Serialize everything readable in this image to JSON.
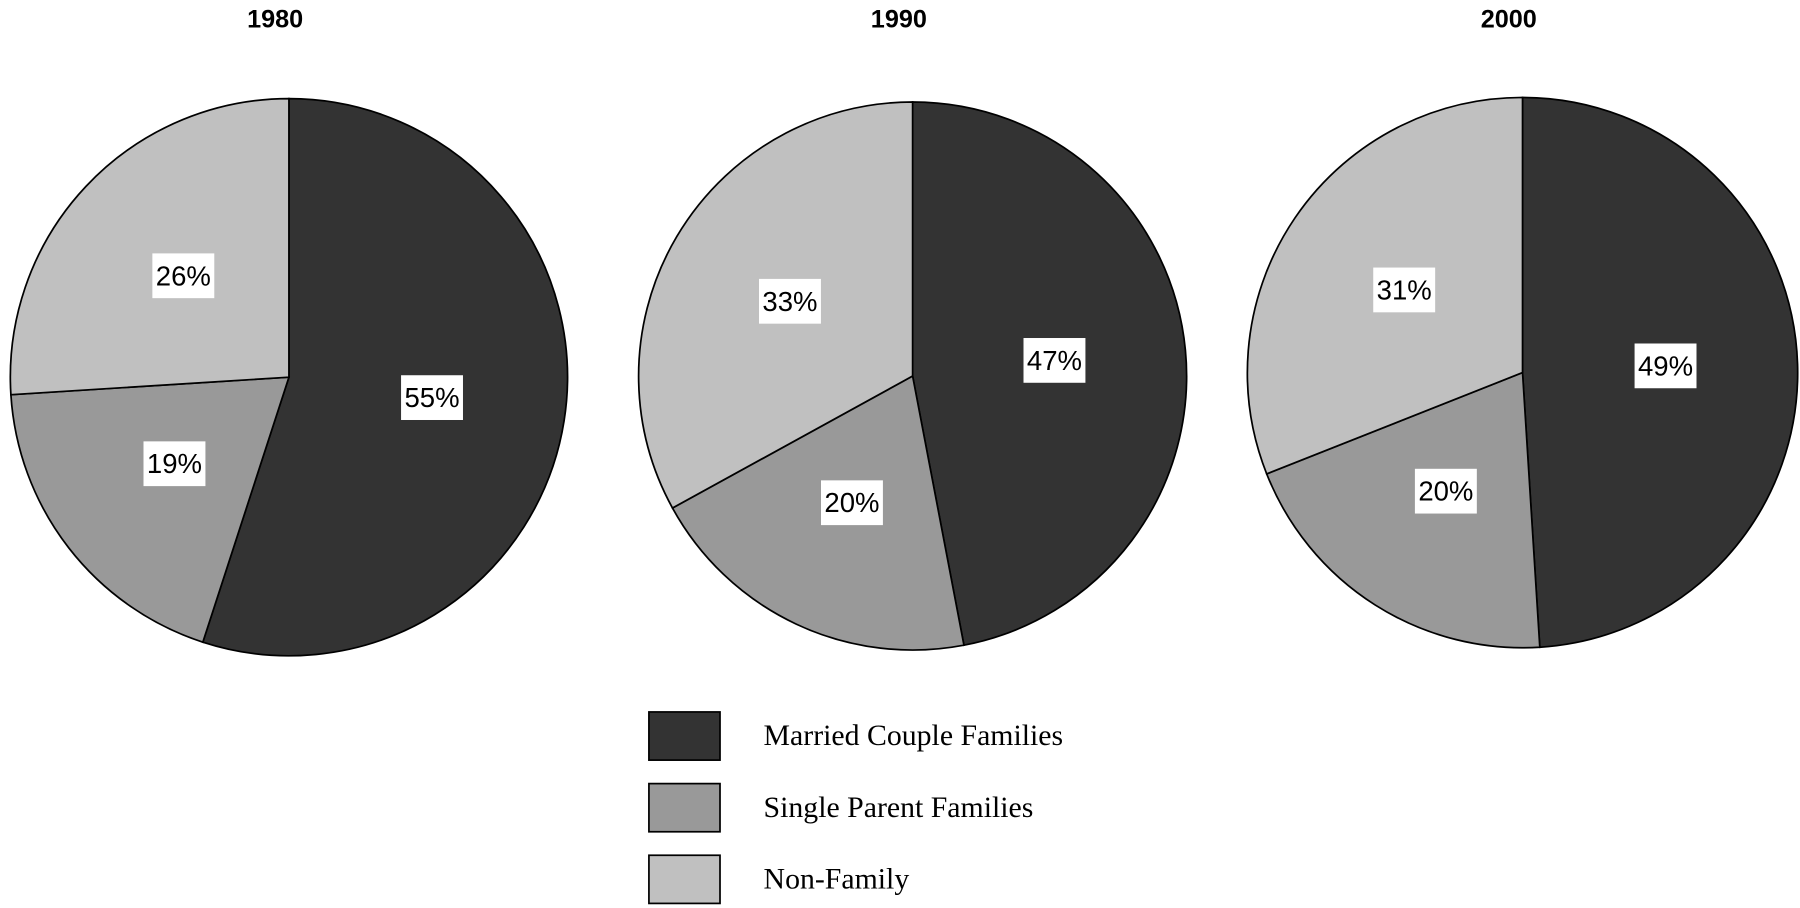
{
  "chart_data": [
    {
      "type": "pie",
      "title": "1980",
      "categories": [
        "Married Couple Families",
        "Single Parent Families",
        "Non-Family"
      ],
      "values": [
        55,
        19,
        26
      ],
      "value_labels": [
        "55%",
        "19%",
        "26%"
      ],
      "colors": [
        "#333333",
        "#999999",
        "#c0c0c0"
      ],
      "legend": "bottom"
    },
    {
      "type": "pie",
      "title": "1990",
      "categories": [
        "Married Couple Families",
        "Single Parent Families",
        "Non-Family"
      ],
      "values": [
        47,
        20,
        33
      ],
      "value_labels": [
        "47%",
        "20%",
        "33%"
      ],
      "colors": [
        "#333333",
        "#999999",
        "#c0c0c0"
      ],
      "legend": "bottom"
    },
    {
      "type": "pie",
      "title": "2000",
      "categories": [
        "Married Couple Families",
        "Single Parent Families",
        "Non-Family"
      ],
      "values": [
        49,
        20,
        31
      ],
      "value_labels": [
        "49%",
        "20%",
        "31%"
      ],
      "colors": [
        "#333333",
        "#999999",
        "#c0c0c0"
      ],
      "legend": "bottom"
    }
  ]
}
